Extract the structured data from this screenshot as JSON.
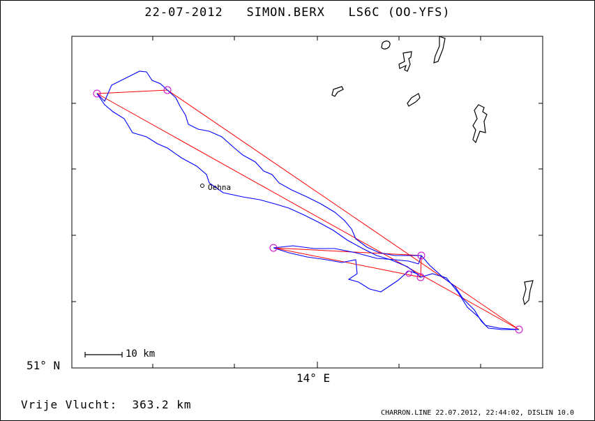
{
  "header": {
    "date": "22-07-2012",
    "pilot": "SIMON.BERX",
    "glider": "LS6C (OO-YFS)"
  },
  "axes": {
    "lat_label": "51° N",
    "lon_label": "14° E"
  },
  "scale_bar": {
    "label": "10 km"
  },
  "place": {
    "name": "Oehna"
  },
  "result": {
    "label": "Vrije Vlucht:",
    "distance": "363.2 km"
  },
  "footer": {
    "text": "CHARRON.LINE 22.07.2012, 22:44:02, DISLIN 10.0"
  },
  "colors": {
    "track": "#0000ff",
    "task": "#ff0000",
    "turnpoint": "#cc00cc",
    "border": "#000000"
  }
}
